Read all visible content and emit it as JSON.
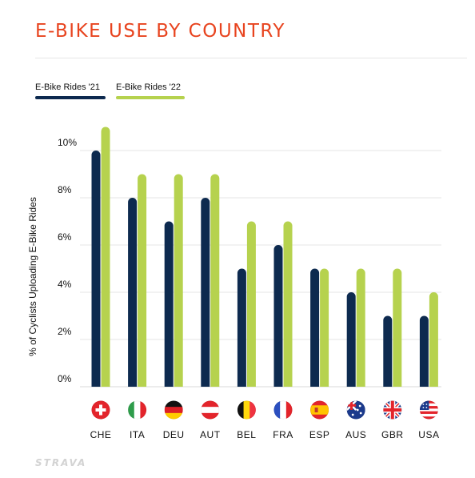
{
  "title": "E-BIKE USE BY COUNTRY",
  "logo": "STRAVA",
  "colors": {
    "accent": "#e8441f",
    "series_2021": "#0d2a4f",
    "series_2022": "#b6d24e",
    "grid": "#e6e6e6"
  },
  "chart_data": {
    "type": "bar",
    "title": "E-BIKE USE BY COUNTRY",
    "ylabel": "% of Cyclists Uploading E-Bike Rides",
    "xlabel": "",
    "ylim": [
      0,
      10
    ],
    "yticks": [
      0,
      2,
      4,
      6,
      8,
      10
    ],
    "ytick_labels": [
      "0%",
      "2%",
      "4%",
      "6%",
      "8%",
      "10%"
    ],
    "grid": true,
    "legend": "top-left",
    "categories": [
      "CHE",
      "ITA",
      "DEU",
      "AUT",
      "BEL",
      "FRA",
      "ESP",
      "AUS",
      "GBR",
      "USA"
    ],
    "flag_icons": [
      "switzerland-flag-icon",
      "italy-flag-icon",
      "germany-flag-icon",
      "austria-flag-icon",
      "belgium-flag-icon",
      "france-flag-icon",
      "spain-flag-icon",
      "australia-flag-icon",
      "uk-flag-icon",
      "usa-flag-icon"
    ],
    "series": [
      {
        "name": "E-Bike Rides '21",
        "color": "#0d2a4f",
        "values": [
          10,
          8,
          7,
          8,
          5,
          6,
          5,
          4,
          3,
          3
        ]
      },
      {
        "name": "E-Bike Rides '22",
        "color": "#b6d24e",
        "values": [
          11,
          9,
          9,
          9,
          7,
          7,
          5,
          5,
          5,
          4
        ]
      }
    ]
  }
}
